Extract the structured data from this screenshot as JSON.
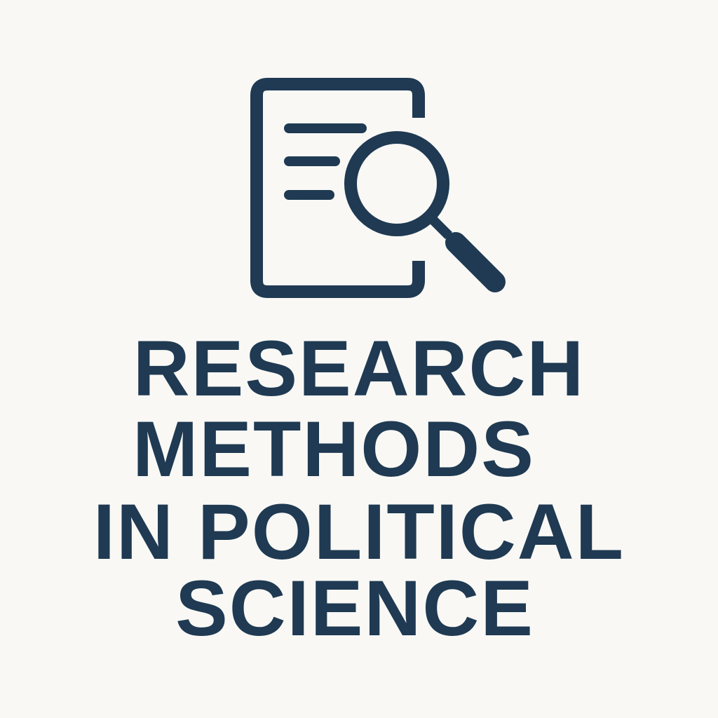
{
  "logo": {
    "icon": "document-search-icon",
    "color": "#1f3a52"
  },
  "title": {
    "lines": [
      "RESEARCH",
      "METHODS",
      "IN POLITICAL",
      "SCIENCE"
    ]
  },
  "background": "#f9f8f5"
}
